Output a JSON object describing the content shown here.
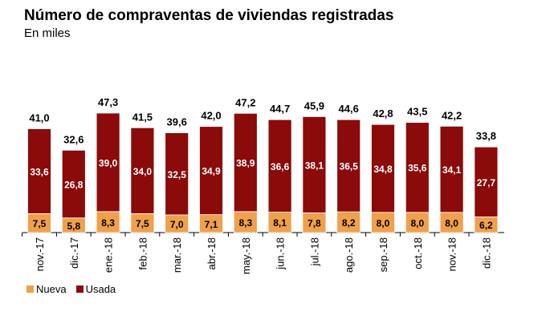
{
  "title": "Número de compraventas de viviendas registradas",
  "subtitle": "En miles",
  "chart_data": {
    "type": "bar",
    "stacked": true,
    "title": "Número de compraventas de viviendas registradas",
    "subtitle": "En miles",
    "categories": [
      "nov.-17",
      "dic.-17",
      "ene.-18",
      "feb.-18",
      "mar.-18",
      "abr.-18",
      "may.-18",
      "jun.-18",
      "jul.-18",
      "ago.-18",
      "sep.-18",
      "oct.-18",
      "nov.-18",
      "dic.-18"
    ],
    "series": [
      {
        "name": "Nueva",
        "color": "#F0A04B",
        "values": [
          7.5,
          5.8,
          8.3,
          7.5,
          7.0,
          7.1,
          8.3,
          8.1,
          7.8,
          8.2,
          8.0,
          8.0,
          8.0,
          6.2
        ],
        "labels": [
          "7,5",
          "5,8",
          "8,3",
          "7,5",
          "7,0",
          "7,1",
          "8,3",
          "8,1",
          "7,8",
          "8,2",
          "8,0",
          "8,0",
          "8,0",
          "6,2"
        ]
      },
      {
        "name": "Usada",
        "color": "#8B0A0A",
        "values": [
          33.6,
          26.8,
          39.0,
          34.0,
          32.5,
          34.9,
          38.9,
          36.6,
          38.1,
          36.5,
          34.8,
          35.6,
          34.1,
          27.7
        ],
        "labels": [
          "33,6",
          "26,8",
          "39,0",
          "34,0",
          "32,5",
          "34,9",
          "38,9",
          "36,6",
          "38,1",
          "36,5",
          "34,8",
          "35,6",
          "34,1",
          "27,7"
        ]
      }
    ],
    "totals": [
      41.0,
      32.6,
      47.3,
      41.5,
      39.6,
      42.0,
      47.2,
      44.7,
      45.9,
      44.6,
      42.8,
      43.5,
      42.2,
      33.8
    ],
    "total_labels": [
      "41,0",
      "32,6",
      "47,3",
      "41,5",
      "39,6",
      "42,0",
      "47,2",
      "44,7",
      "45,9",
      "44,6",
      "42,8",
      "43,5",
      "42,2",
      "33,8"
    ],
    "xlabel": "",
    "ylabel": "",
    "ylim": [
      0,
      50
    ],
    "grid": false,
    "legend": "bottom-left"
  }
}
